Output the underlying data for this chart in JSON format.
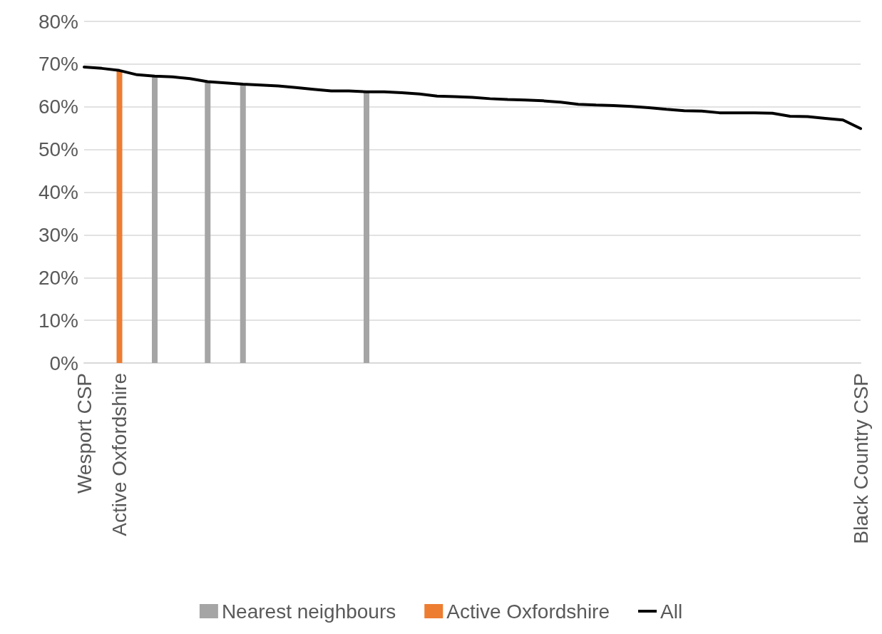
{
  "chart_data": {
    "type": "bar",
    "categories": [
      "Wesport CSP",
      null,
      "Active Oxfordshire",
      null,
      null,
      null,
      null,
      null,
      null,
      null,
      null,
      null,
      null,
      null,
      null,
      null,
      null,
      null,
      null,
      null,
      null,
      null,
      null,
      null,
      null,
      null,
      null,
      null,
      null,
      null,
      null,
      null,
      null,
      null,
      null,
      null,
      null,
      null,
      null,
      null,
      null,
      null,
      null,
      null,
      "Black Country CSP"
    ],
    "series": [
      {
        "name": "Nearest neighbours",
        "color": "#a5a5a5",
        "values": [
          null,
          null,
          null,
          null,
          67.2,
          null,
          null,
          65.9,
          null,
          65.3,
          null,
          null,
          null,
          null,
          null,
          null,
          63.5,
          null,
          null,
          null,
          null,
          null,
          null,
          null,
          null,
          null,
          null,
          null,
          null,
          null,
          null,
          null,
          null,
          null,
          null,
          null,
          null,
          null,
          null,
          null,
          null,
          null,
          null,
          null,
          null
        ]
      },
      {
        "name": "Active Oxfordshire",
        "color": "#ed7d31",
        "values": [
          null,
          null,
          68.5,
          null,
          null,
          null,
          null,
          null,
          null,
          null,
          null,
          null,
          null,
          null,
          null,
          null,
          null,
          null,
          null,
          null,
          null,
          null,
          null,
          null,
          null,
          null,
          null,
          null,
          null,
          null,
          null,
          null,
          null,
          null,
          null,
          null,
          null,
          null,
          null,
          null,
          null,
          null,
          null,
          null,
          null
        ]
      },
      {
        "name": "All",
        "type": "line",
        "color": "#000000",
        "values": [
          69.3,
          69.0,
          68.5,
          67.5,
          67.2,
          67.0,
          66.6,
          65.9,
          65.6,
          65.3,
          65.1,
          64.9,
          64.5,
          64.1,
          63.7,
          63.7,
          63.5,
          63.5,
          63.3,
          63.0,
          62.5,
          62.4,
          62.2,
          61.9,
          61.7,
          61.6,
          61.4,
          61.1,
          60.6,
          60.4,
          60.3,
          60.1,
          59.8,
          59.4,
          59.1,
          59.0,
          58.6,
          58.6,
          58.6,
          58.5,
          57.8,
          57.7,
          57.3,
          56.9,
          54.9
        ]
      }
    ],
    "ylim": [
      0,
      80
    ],
    "yticks": [
      {
        "value": 0,
        "label": "0%"
      },
      {
        "value": 10,
        "label": "10%"
      },
      {
        "value": 20,
        "label": "20%"
      },
      {
        "value": 30,
        "label": "30%"
      },
      {
        "value": 40,
        "label": "40%"
      },
      {
        "value": 50,
        "label": "50%"
      },
      {
        "value": 60,
        "label": "60%"
      },
      {
        "value": 70,
        "label": "70%"
      },
      {
        "value": 80,
        "label": "80%"
      }
    ],
    "grid": "y",
    "legend": "bottom",
    "marker": "none",
    "line_style": "solid"
  }
}
